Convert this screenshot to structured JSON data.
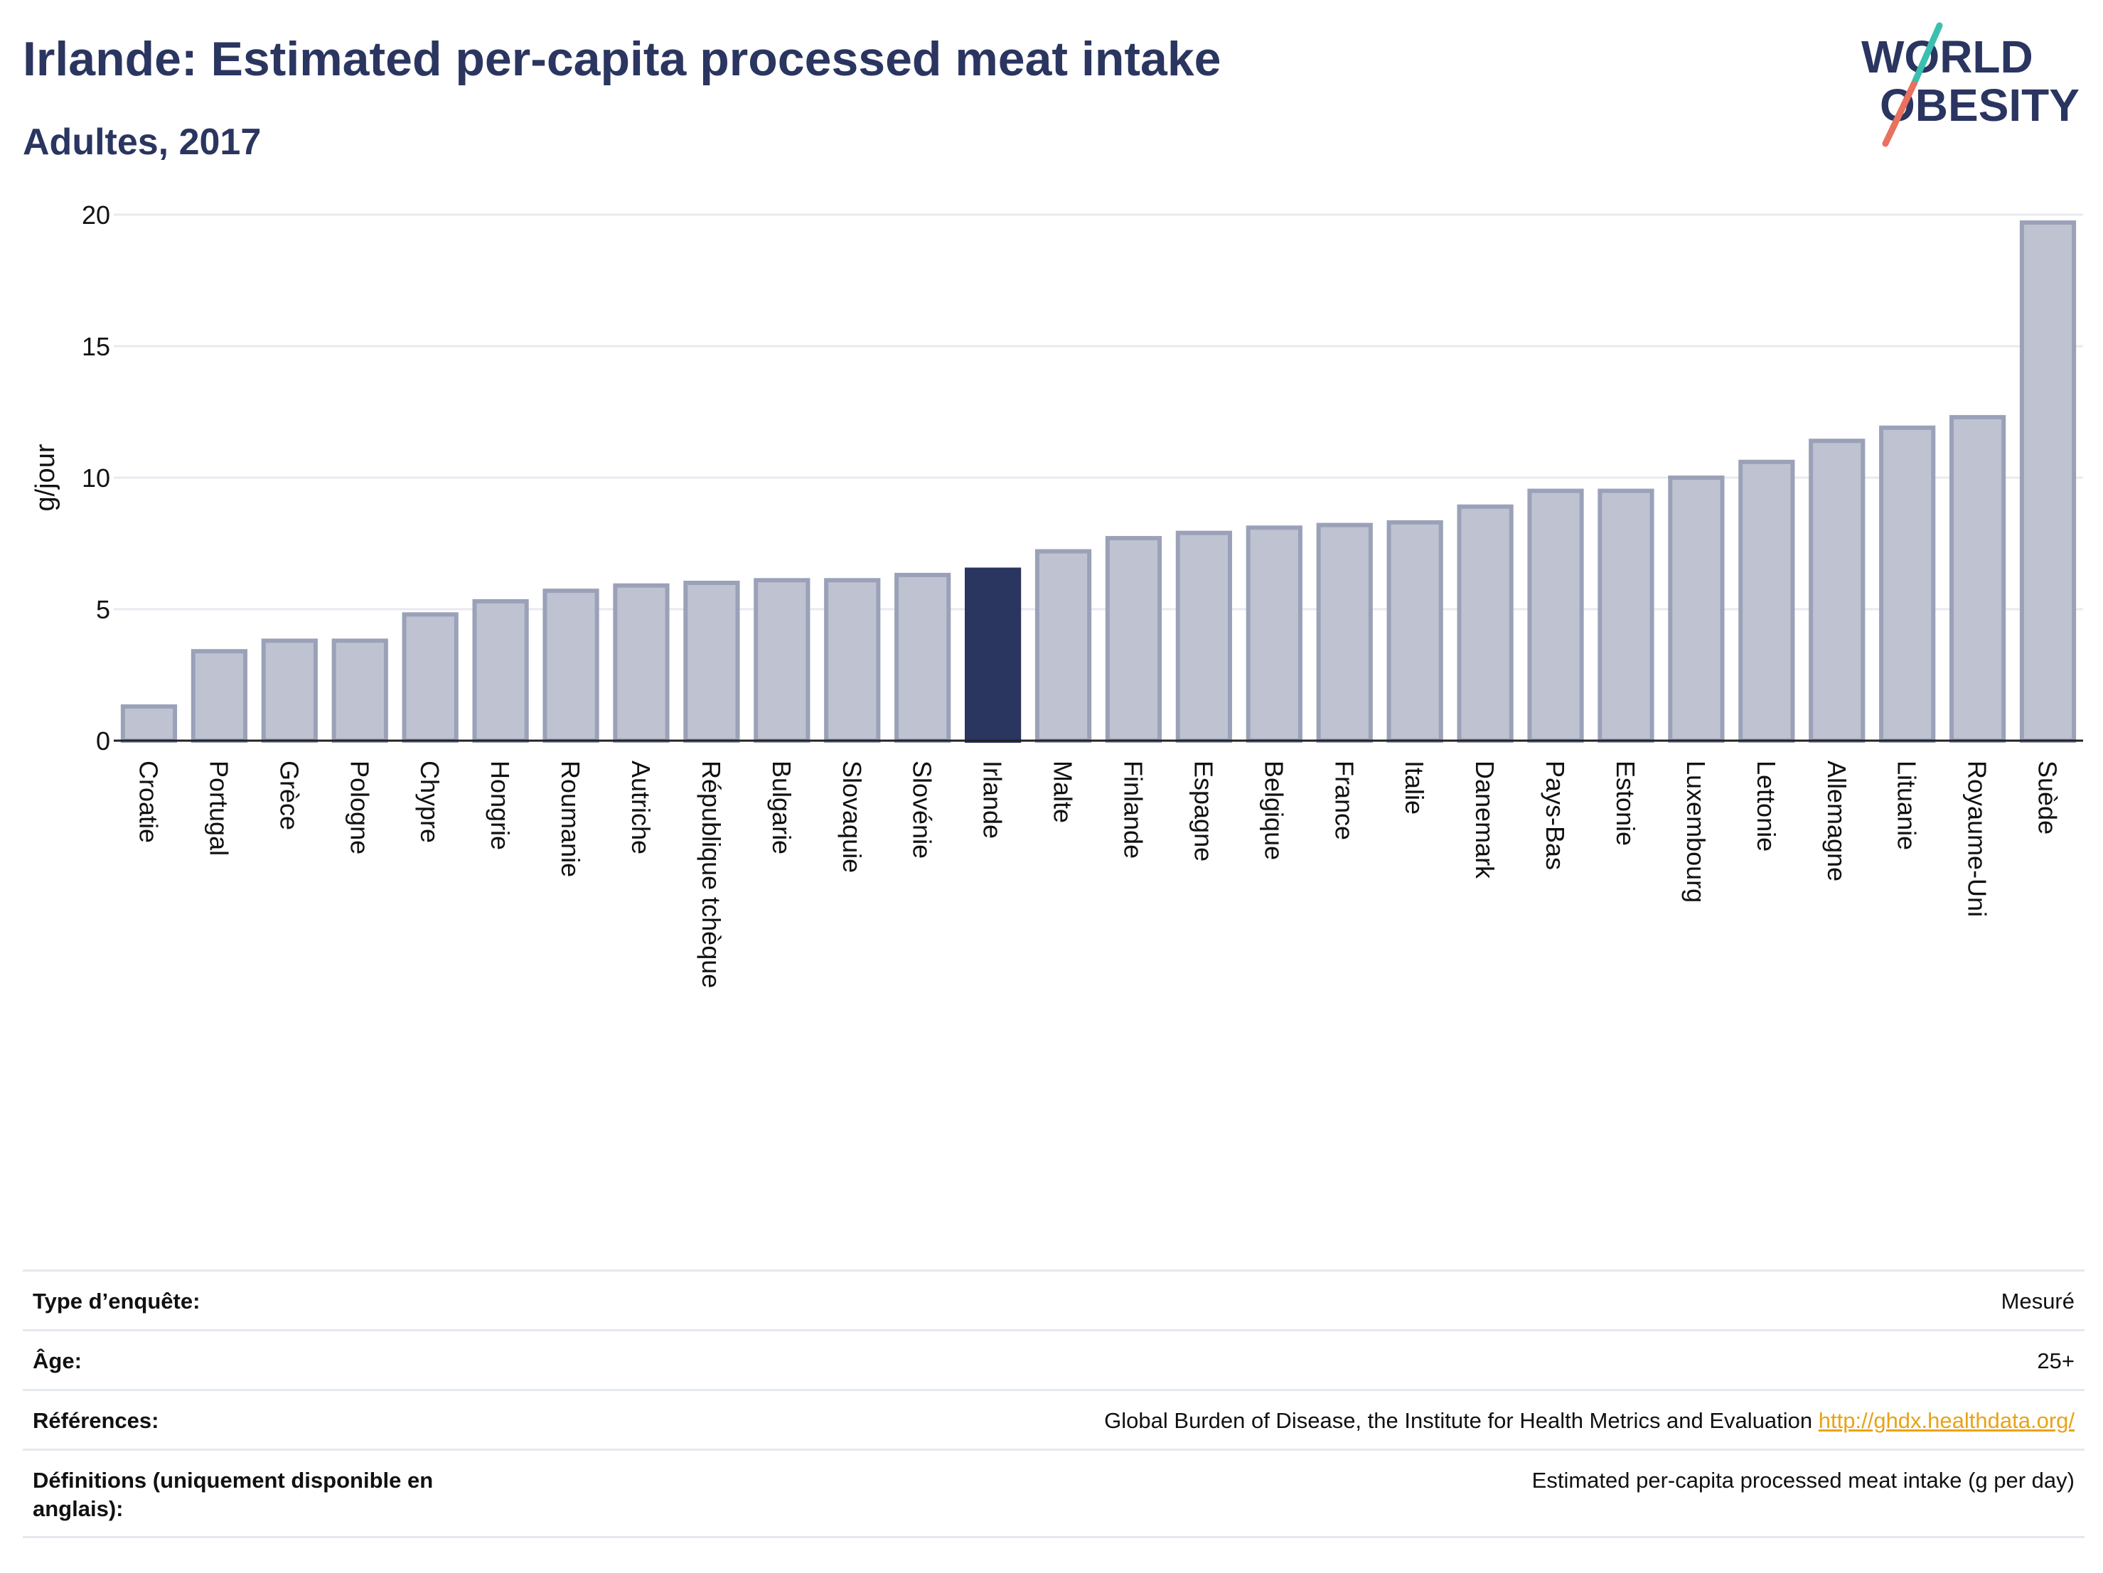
{
  "header": {
    "title": "Irlande: Estimated per-capita processed meat intake",
    "subtitle": "Adultes, 2017"
  },
  "logo": {
    "line1": "WORLD",
    "line2": "OBESITY",
    "colors": {
      "text": "#2a3560",
      "slash_top": "#3bbfb0",
      "slash_bottom": "#e8715f"
    }
  },
  "chart_data": {
    "type": "bar",
    "ylabel": "g/jour",
    "ylim": [
      0,
      20
    ],
    "yticks": [
      0,
      5,
      10,
      15,
      20
    ],
    "grid": true,
    "highlight": "Irlande",
    "colors": {
      "bar": "#bfc3d1",
      "bar_border": "#9aa1b8",
      "highlight": "#2a3560"
    },
    "categories": [
      "Croatie",
      "Portugal",
      "Grèce",
      "Pologne",
      "Chypre",
      "Hongrie",
      "Roumanie",
      "Autriche",
      "République tchèque",
      "Bulgarie",
      "Slovaquie",
      "Slovénie",
      "Irlande",
      "Malte",
      "Finlande",
      "Espagne",
      "Belgique",
      "France",
      "Italie",
      "Danemark",
      "Pays-Bas",
      "Estonie",
      "Luxembourg",
      "Lettonie",
      "Allemagne",
      "Lituanie",
      "Royaume-Uni",
      "Suède"
    ],
    "values": [
      1.3,
      3.4,
      3.8,
      3.8,
      4.8,
      5.3,
      5.7,
      5.9,
      6.0,
      6.1,
      6.1,
      6.3,
      6.5,
      7.2,
      7.7,
      7.9,
      8.1,
      8.2,
      8.3,
      8.9,
      9.5,
      9.5,
      10.0,
      10.6,
      11.4,
      11.9,
      12.3,
      19.7
    ]
  },
  "info": {
    "rows": [
      {
        "label": "Type d’enquête:",
        "value": "Mesuré"
      },
      {
        "label": "Âge:",
        "value": "25+"
      },
      {
        "label": "Références:",
        "value": "Global Burden of Disease, the Institute for Health Metrics and Evaluation",
        "link": "http://ghdx.healthdata.org/"
      },
      {
        "label": "Définitions (uniquement disponible en anglais):",
        "value": "Estimated per-capita processed meat intake (g per day)"
      }
    ]
  }
}
